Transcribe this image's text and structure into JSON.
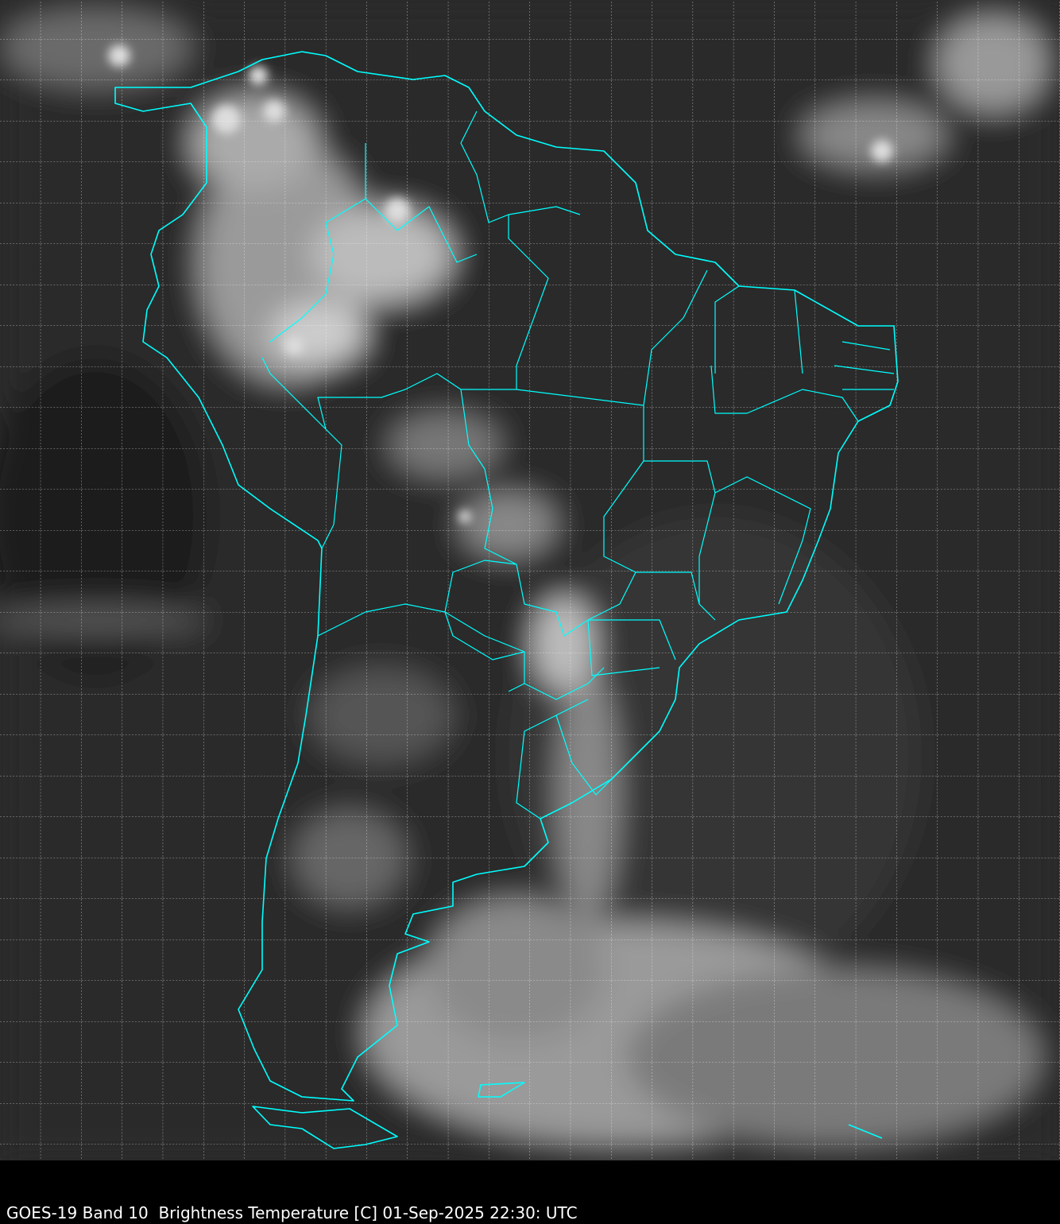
{
  "caption": "GOES-19 Band 10  Brightness Temperature [C] 01-Sep-2025 22:30: UTC",
  "colors": {
    "coastline": "#00ffff",
    "grid": "#ffffff",
    "background": "#000000"
  },
  "layers": [
    "infrared-brightness-temperature",
    "coastlines-borders",
    "lat-lon-grid"
  ]
}
